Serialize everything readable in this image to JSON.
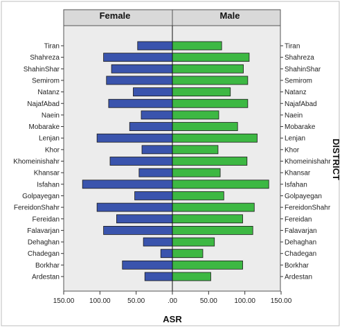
{
  "colors": {
    "female_bar": "#3a54ad",
    "male_bar": "#3db843",
    "plot_background": "#ececec",
    "header_background": "#d9d9d9",
    "bar_outline": "#1a1a1a"
  },
  "chart_data": {
    "type": "bar",
    "orientation": "horizontal",
    "layout": "population-pyramid",
    "panels": [
      "Female",
      "Male"
    ],
    "xlabel": "ASR",
    "ylabel": "DISTRICT",
    "xlim": [
      0,
      150
    ],
    "x_ticks": [
      "150.00",
      "100.00",
      "50.00",
      ".00",
      "50.00",
      "100.00",
      "150.00"
    ],
    "categories": [
      "Tiran",
      "Shahreza",
      "ShahinShar",
      "Semirom",
      "Natanz",
      "NajafAbad",
      "Naein",
      "Mobarake",
      "Lenjan",
      "Khor",
      "Khomeinishahr",
      "Khansar",
      "Isfahan",
      "Golpayegan",
      "FereidonShahr",
      "Fereidan",
      "Falavarjan",
      "Dehaghan",
      "Chadegan",
      "Borkhar",
      "Ardestan"
    ],
    "series": [
      {
        "name": "Female",
        "color": "#3a54ad",
        "values": [
          48,
          95,
          84,
          91,
          54,
          88,
          43,
          59,
          104,
          42,
          86,
          46,
          124,
          52,
          104,
          77,
          95,
          40,
          16,
          69,
          38
        ]
      },
      {
        "name": "Male",
        "color": "#3db843",
        "values": [
          68,
          106,
          98,
          104,
          80,
          104,
          64,
          90,
          117,
          63,
          103,
          66,
          133,
          71,
          113,
          97,
          111,
          58,
          42,
          97,
          53
        ]
      }
    ],
    "grid": false
  }
}
